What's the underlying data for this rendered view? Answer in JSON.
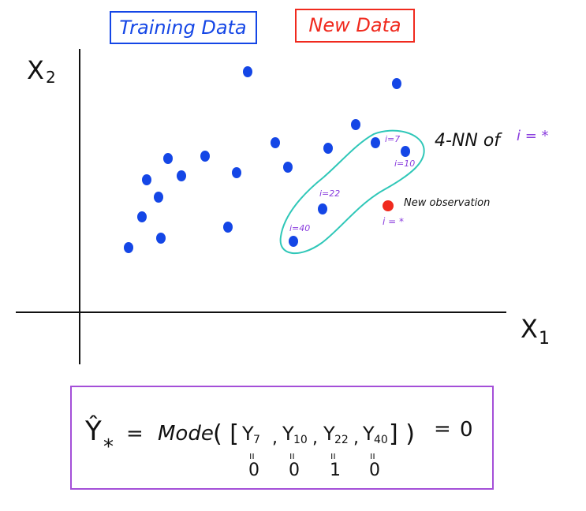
{
  "legend": {
    "training_label": "Training Data",
    "new_label": "New Data"
  },
  "axes": {
    "x_label": "X",
    "x_sub": "1",
    "y_label": "X",
    "y_sub": "2"
  },
  "annotations": {
    "knn_title": "4-NN of",
    "knn_index": "i = *",
    "new_observation": "New observation",
    "new_index": "i = *",
    "idx_7": "i=7",
    "idx_10": "i=10",
    "idx_22": "i=22",
    "idx_40": "i=40"
  },
  "formula": {
    "lhs": "Ŷ",
    "lhs_sub": "*",
    "eq": "=",
    "func": "Mode",
    "open": "( [",
    "terms": [
      {
        "y": "Y",
        "sub": "7",
        "val": "0"
      },
      {
        "y": "Y",
        "sub": "10",
        "val": "0"
      },
      {
        "y": "Y",
        "sub": "22",
        "val": "1"
      },
      {
        "y": "Y",
        "sub": "40",
        "val": "0"
      }
    ],
    "close": "] )",
    "rhs_eq": "=",
    "result": "0",
    "under_mark": "ıı"
  },
  "colors": {
    "training": "#1446e6",
    "new": "#f02a1e",
    "knn_outline": "#2fc7b8",
    "index_label": "#8a3dde",
    "formula_border": "#a44fd8",
    "ink": "#111111"
  }
}
